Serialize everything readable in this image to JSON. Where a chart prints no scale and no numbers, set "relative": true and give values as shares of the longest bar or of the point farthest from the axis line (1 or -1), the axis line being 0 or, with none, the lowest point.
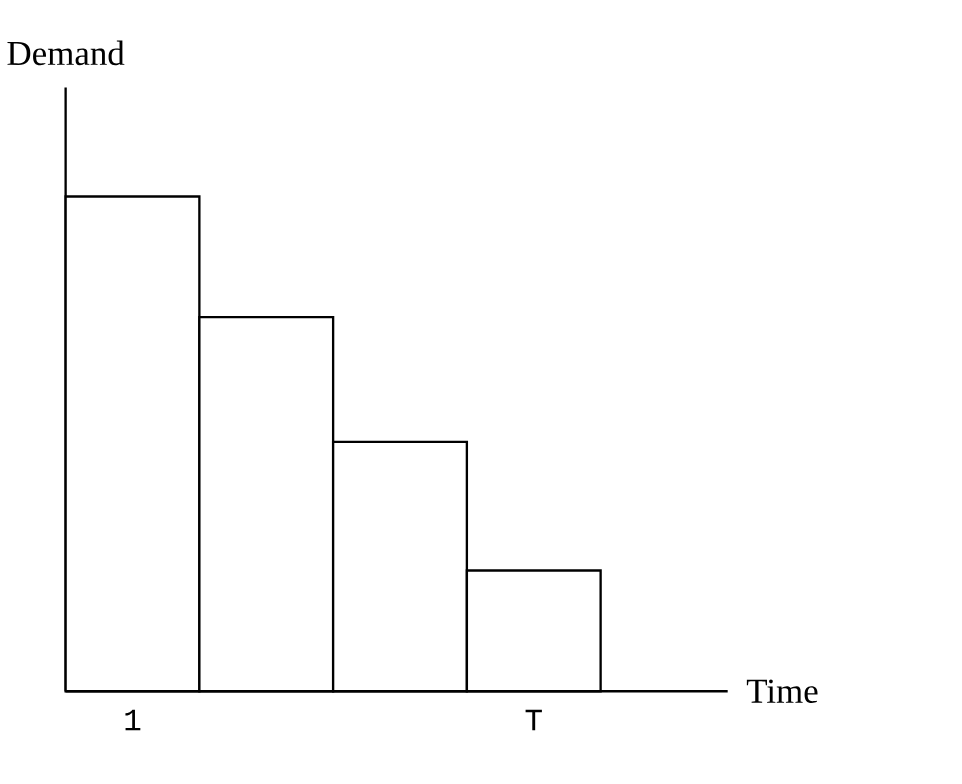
{
  "chart_data": {
    "type": "bar",
    "relative": true,
    "xlabel": "Time",
    "ylabel": "Demand",
    "categories": [
      "1",
      null,
      null,
      "T"
    ],
    "values": [
      1,
      0.756,
      0.504,
      0.244
    ],
    "color": "#ffffff"
  }
}
